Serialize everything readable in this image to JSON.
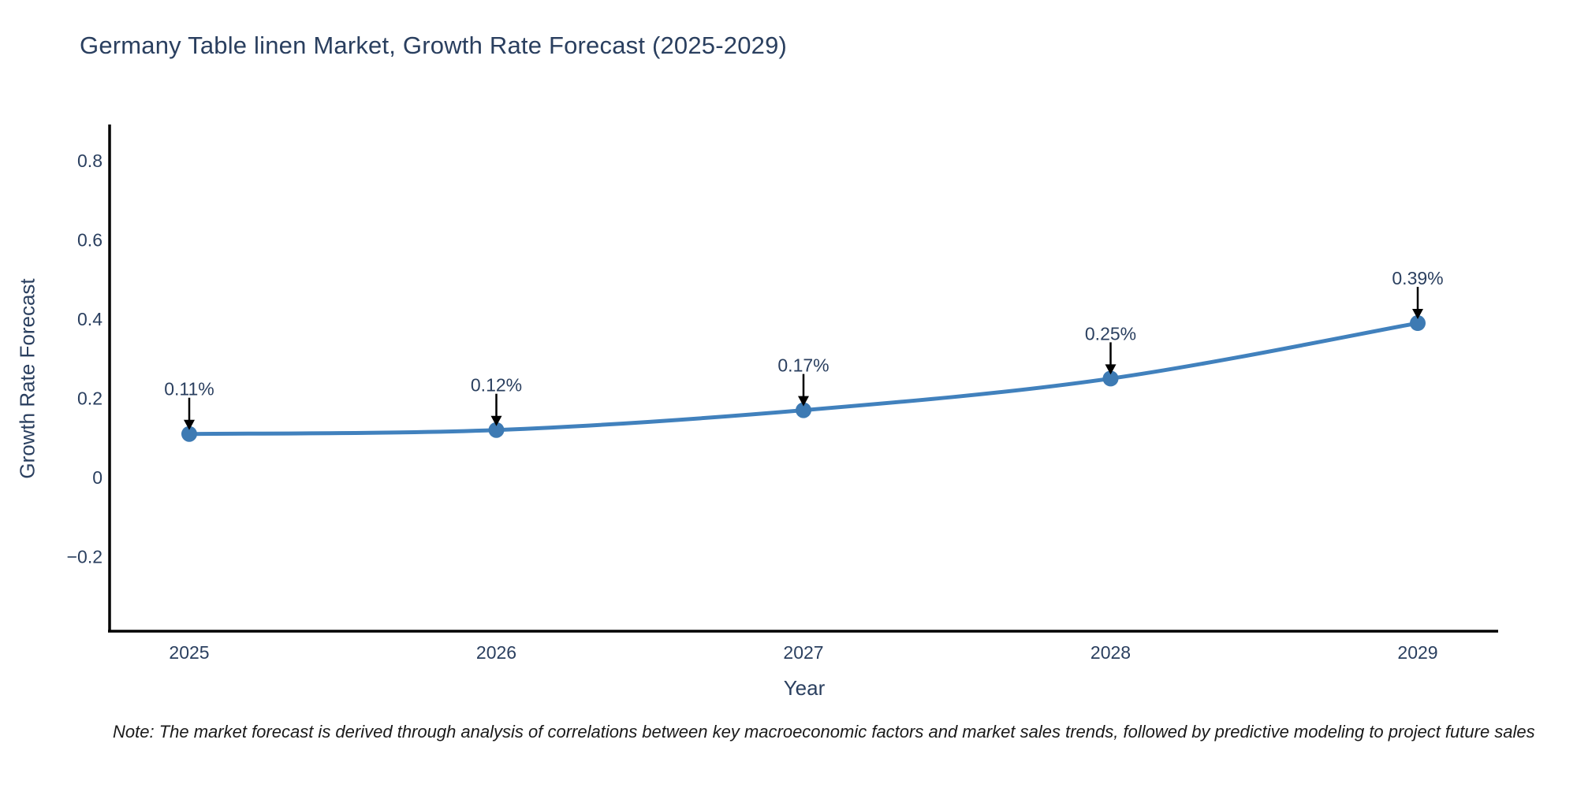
{
  "page": {
    "background": "#ffffff"
  },
  "chart": {
    "title": "Germany Table linen Market, Growth Rate Forecast (2025-2029)",
    "xlabel": "Year",
    "ylabel": "Growth Rate Forecast",
    "note": "Note: The market forecast is derived through analysis of correlations between key macroeconomic factors and market sales trends, followed by predictive modeling to project future sales"
  },
  "chart_data": {
    "type": "line",
    "title": "Germany Table linen Market, Growth Rate Forecast (2025-2029)",
    "xlabel": "Year",
    "ylabel": "Growth Rate Forecast",
    "x": [
      2025,
      2026,
      2027,
      2028,
      2029
    ],
    "series": [
      {
        "name": "Growth Rate Forecast",
        "values": [
          0.11,
          0.12,
          0.17,
          0.25,
          0.39
        ]
      }
    ],
    "point_labels": [
      "0.11%",
      "0.12%",
      "0.17%",
      "0.25%",
      "0.39%"
    ],
    "yticks": [
      0.8,
      0.6,
      0.4,
      0.2,
      0,
      -0.2
    ],
    "ylim": [
      -0.39,
      0.89
    ],
    "xlim": [
      2024.74,
      2029.26
    ],
    "grid": false,
    "legend_position": "none",
    "smooth_line": true,
    "colors": {
      "line": "#4181bd",
      "marker": "#3d7ab3",
      "axis_line": "#000000",
      "text": "#2a3f5f",
      "annotation_arrow": "#000000",
      "note_text": "#1a1a1a"
    }
  }
}
